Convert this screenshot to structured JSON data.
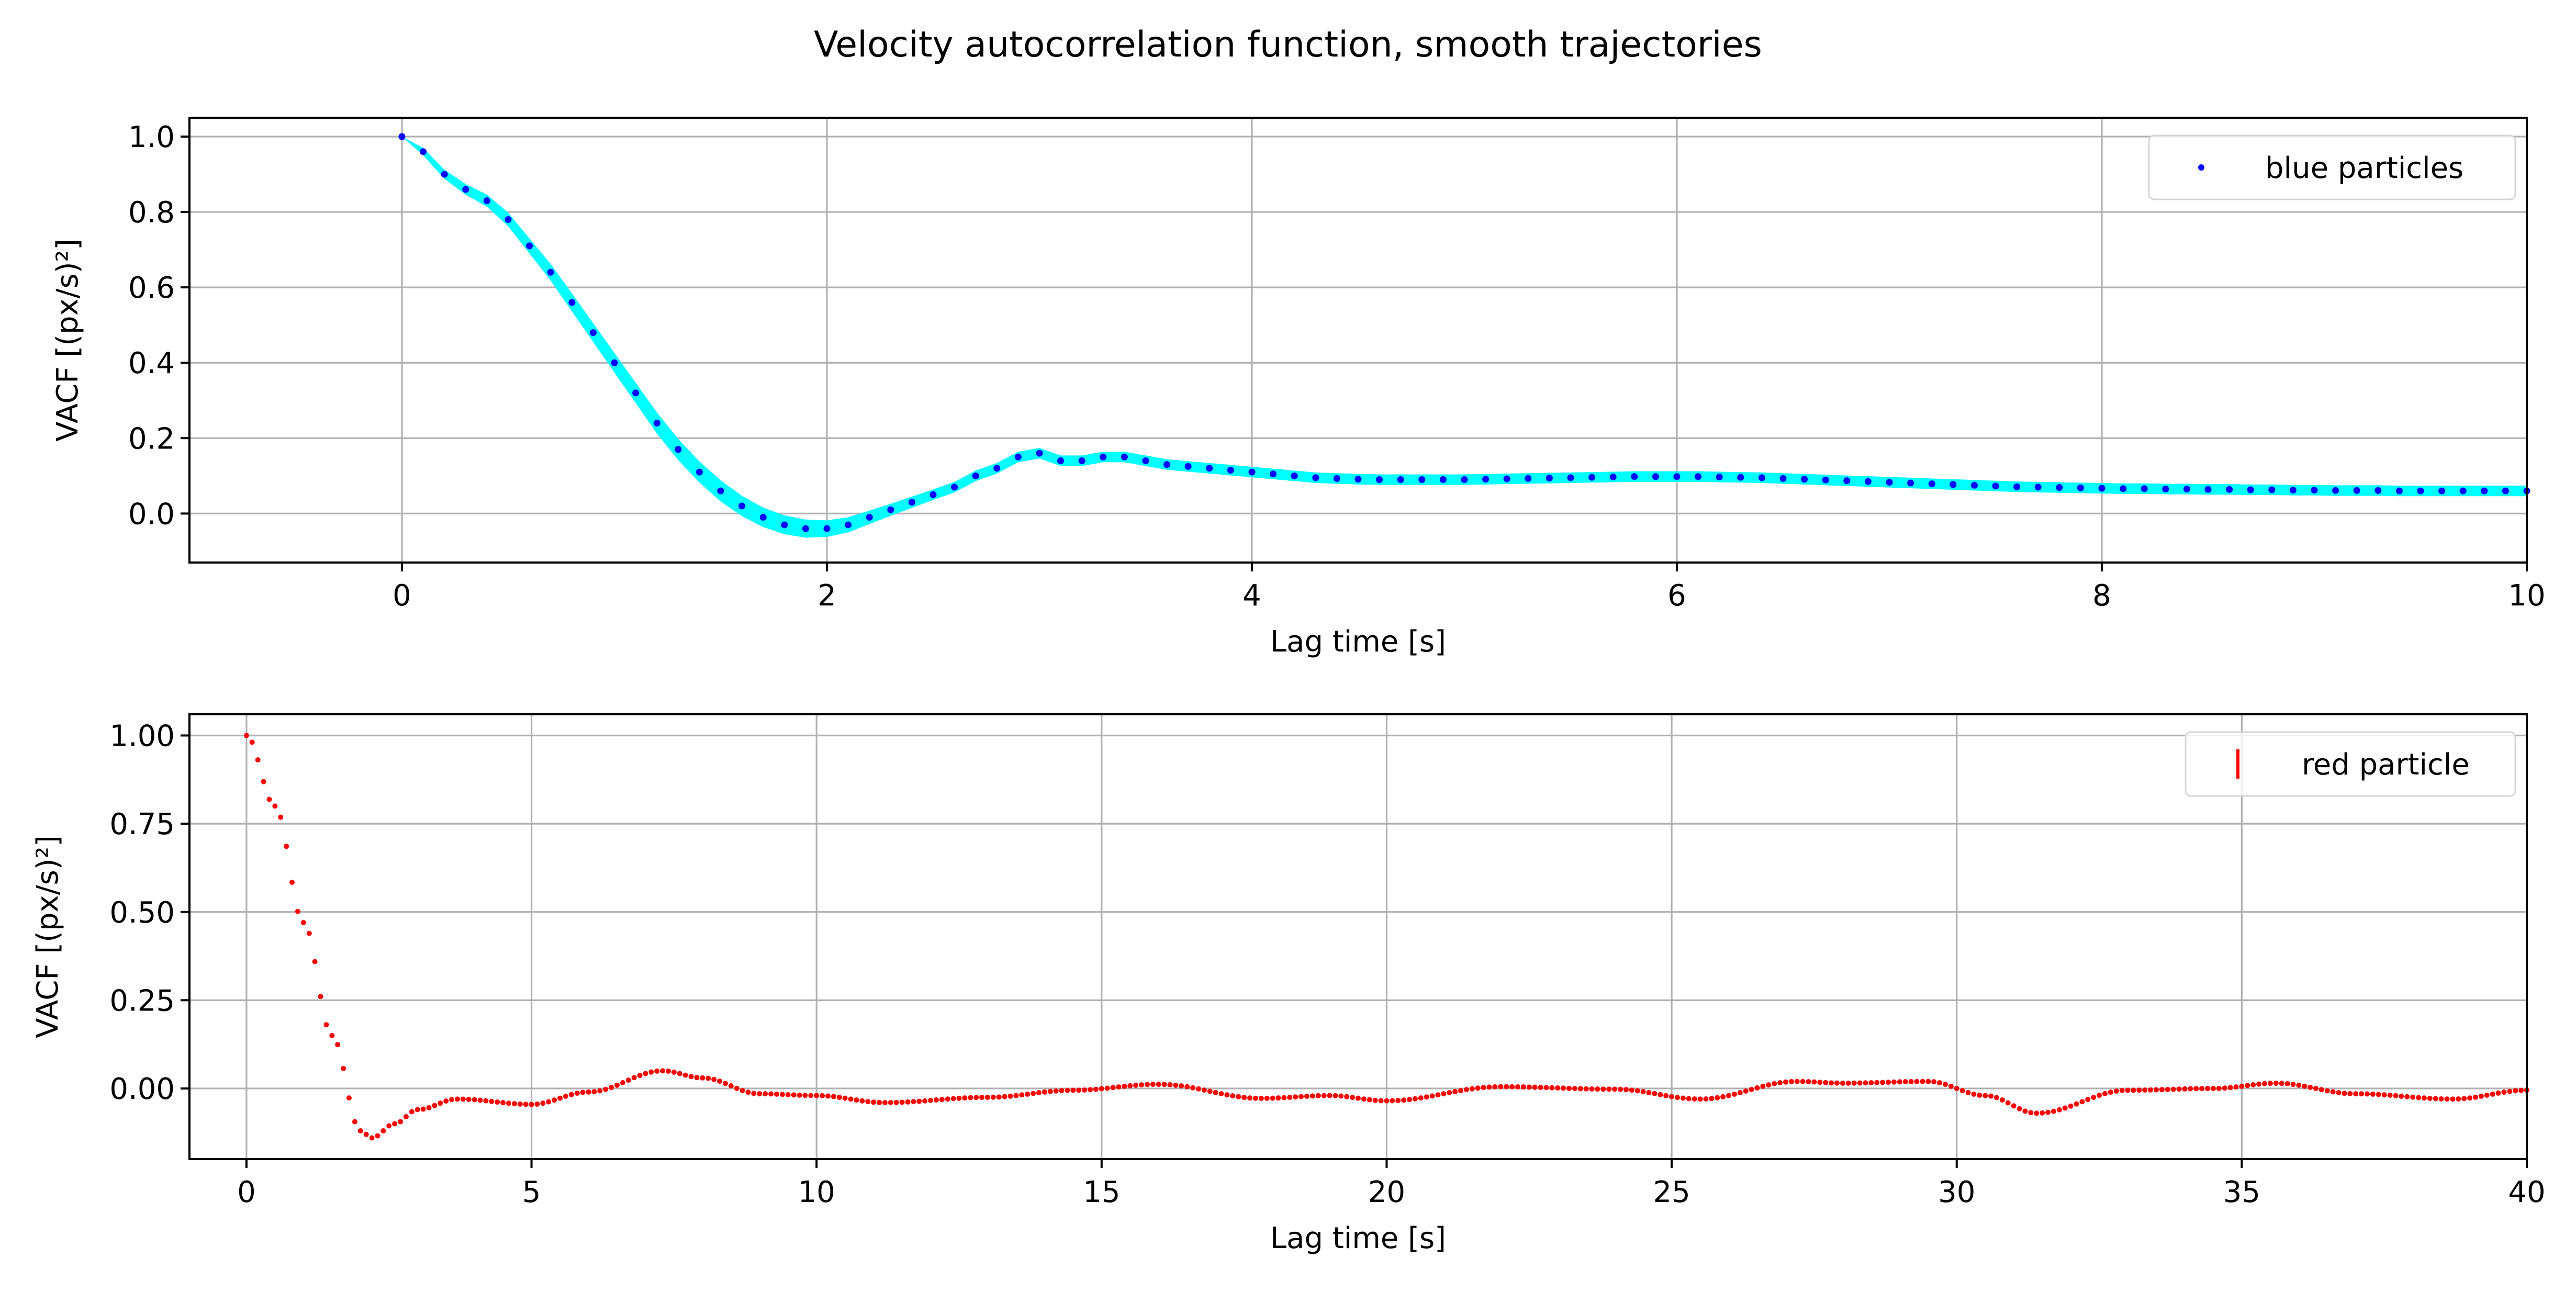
{
  "figure": {
    "title": "Velocity autocorrelation function, smooth trajectories"
  },
  "chart_data": [
    {
      "type": "scatter",
      "xlabel": "Lag time [s]",
      "ylabel": "VACF [(px/s)²]",
      "xlim": [
        -1,
        10
      ],
      "ylim": [
        -0.13,
        1.05
      ],
      "xticks": [
        0,
        2,
        4,
        6,
        8,
        10
      ],
      "xtick_labels": [
        "0",
        "2",
        "4",
        "6",
        "8",
        "10"
      ],
      "yticks": [
        0.0,
        0.2,
        0.4,
        0.6,
        0.8,
        1.0
      ],
      "ytick_labels": [
        "0.0",
        "0.2",
        "0.4",
        "0.6",
        "0.8",
        "1.0"
      ],
      "grid": true,
      "legend_position": "upper right",
      "series": [
        {
          "name": "blue particles",
          "marker_color": "#0000ff",
          "band_color": "#00ffff",
          "x_step": 0.1,
          "x_start": 0,
          "values": [
            1.0,
            0.96,
            0.9,
            0.86,
            0.83,
            0.78,
            0.71,
            0.64,
            0.56,
            0.48,
            0.4,
            0.32,
            0.24,
            0.17,
            0.11,
            0.06,
            0.02,
            -0.01,
            -0.03,
            -0.04,
            -0.04,
            -0.03,
            -0.01,
            0.01,
            0.03,
            0.05,
            0.07,
            0.1,
            0.12,
            0.15,
            0.16,
            0.14,
            0.14,
            0.15,
            0.15,
            0.14,
            0.13,
            0.125,
            0.12,
            0.115,
            0.11,
            0.105,
            0.1,
            0.095,
            0.093,
            0.091,
            0.09,
            0.09,
            0.09,
            0.09,
            0.09,
            0.091,
            0.092,
            0.093,
            0.094,
            0.095,
            0.096,
            0.097,
            0.098,
            0.098,
            0.098,
            0.098,
            0.097,
            0.096,
            0.095,
            0.093,
            0.091,
            0.089,
            0.087,
            0.085,
            0.083,
            0.081,
            0.079,
            0.077,
            0.075,
            0.073,
            0.071,
            0.07,
            0.069,
            0.068,
            0.067,
            0.066,
            0.066,
            0.065,
            0.065,
            0.064,
            0.064,
            0.063,
            0.063,
            0.062,
            0.062,
            0.061,
            0.061,
            0.061,
            0.06,
            0.06,
            0.06,
            0.06,
            0.06,
            0.06,
            0.06
          ],
          "band_halfwidth": [
            0.0,
            0.01,
            0.012,
            0.014,
            0.016,
            0.018,
            0.02,
            0.022,
            0.024,
            0.025,
            0.026,
            0.027,
            0.028,
            0.028,
            0.028,
            0.028,
            0.027,
            0.026,
            0.025,
            0.024,
            0.022,
            0.02,
            0.018,
            0.016,
            0.015,
            0.014,
            0.014,
            0.014,
            0.014,
            0.014,
            0.014,
            0.014,
            0.014,
            0.014,
            0.014,
            0.014,
            0.014,
            0.014,
            0.014,
            0.014,
            0.014
          ]
        }
      ]
    },
    {
      "type": "scatter",
      "xlabel": "Lag time [s]",
      "ylabel": "VACF [(px/s)²]",
      "xlim": [
        -1,
        40
      ],
      "ylim": [
        -0.2,
        1.06
      ],
      "xticks": [
        0,
        5,
        10,
        15,
        20,
        25,
        30,
        35,
        40
      ],
      "xtick_labels": [
        "0",
        "5",
        "10",
        "15",
        "20",
        "25",
        "30",
        "35",
        "40"
      ],
      "yticks": [
        0.0,
        0.25,
        0.5,
        0.75,
        1.0
      ],
      "ytick_labels": [
        "0.00",
        "0.25",
        "0.50",
        "0.75",
        "1.00"
      ],
      "grid": true,
      "legend_position": "upper right",
      "series": [
        {
          "name": "red particle",
          "marker_color": "#ff0000",
          "x_step": 0.1,
          "x_start": 0,
          "keypoints": [
            [
              0,
              1.0
            ],
            [
              0.5,
              0.8
            ],
            [
              1.0,
              0.47
            ],
            [
              1.5,
              0.15
            ],
            [
              2.0,
              -0.12
            ],
            [
              2.2,
              -0.14
            ],
            [
              2.6,
              -0.1
            ],
            [
              3.0,
              -0.06
            ],
            [
              3.7,
              -0.03
            ],
            [
              5.0,
              -0.045
            ],
            [
              6.0,
              -0.01
            ],
            [
              7.3,
              0.05
            ],
            [
              8.0,
              0.03
            ],
            [
              9.0,
              -0.015
            ],
            [
              10.0,
              -0.02
            ],
            [
              11.2,
              -0.04
            ],
            [
              13.0,
              -0.025
            ],
            [
              14.5,
              -0.005
            ],
            [
              16.0,
              0.012
            ],
            [
              17.8,
              -0.028
            ],
            [
              19.0,
              -0.02
            ],
            [
              20.0,
              -0.035
            ],
            [
              22.0,
              0.005
            ],
            [
              24.0,
              -0.002
            ],
            [
              25.5,
              -0.03
            ],
            [
              27.2,
              0.02
            ],
            [
              28.0,
              0.015
            ],
            [
              29.5,
              0.02
            ],
            [
              30.5,
              -0.02
            ],
            [
              31.4,
              -0.07
            ],
            [
              33.0,
              -0.005
            ],
            [
              34.5,
              0.0
            ],
            [
              35.6,
              0.015
            ],
            [
              37.0,
              -0.015
            ],
            [
              38.7,
              -0.03
            ],
            [
              40.0,
              -0.005
            ]
          ]
        }
      ]
    }
  ]
}
